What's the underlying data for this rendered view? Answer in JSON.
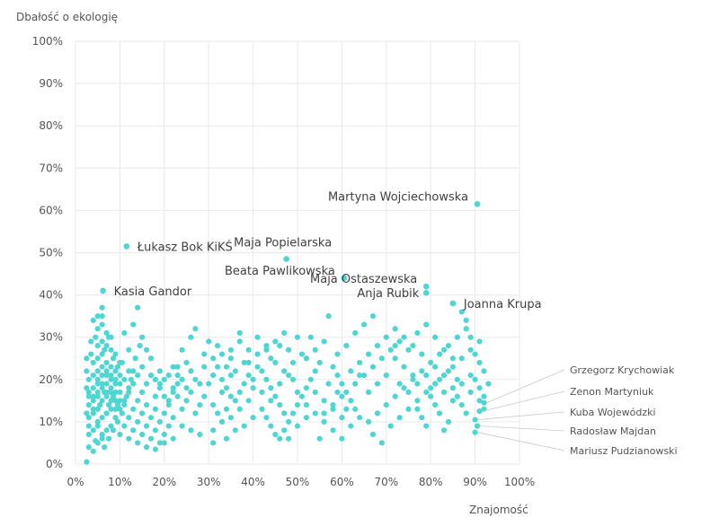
{
  "chart_data": {
    "type": "scatter",
    "title": "",
    "xlabel": "Znajomość",
    "ylabel": "Dbałość o ekologię",
    "xlim": [
      0,
      100
    ],
    "ylim": [
      0,
      100
    ],
    "xticks": [
      "0%",
      "10%",
      "20%",
      "30%",
      "40%",
      "50%",
      "60%",
      "70%",
      "80%",
      "90%",
      "100%"
    ],
    "yticks": [
      "0%",
      "10%",
      "20%",
      "30%",
      "40%",
      "50%",
      "60%",
      "70%",
      "80%",
      "90%",
      "100%"
    ],
    "grid": true,
    "color": "#4fd5d2",
    "labeled_points": [
      {
        "name": "Martyna Wojciechowska",
        "x": 90.5,
        "y": 61.5,
        "label_side": "left-above"
      },
      {
        "name": "Łukasz Bok KiKŚ",
        "x": 11.5,
        "y": 51.5,
        "label_side": "right"
      },
      {
        "name": "Maja Popielarska",
        "x": 47.5,
        "y": 48.5,
        "label_side": "right-above"
      },
      {
        "name": "Beata Pawlikowska",
        "x": 60.5,
        "y": 44.0,
        "label_side": "left-above"
      },
      {
        "name": "Maja Ostaszewska",
        "x": 79.0,
        "y": 42.0,
        "label_side": "left-above"
      },
      {
        "name": "Anja Rubik",
        "x": 79.0,
        "y": 40.5,
        "label_side": "left"
      },
      {
        "name": "Joanna Krupa",
        "x": 85.0,
        "y": 38.0,
        "label_side": "right"
      },
      {
        "name": "Kasia Gandor",
        "x": 6.2,
        "y": 41.0,
        "label_side": "right"
      }
    ],
    "side_labeled_points": [
      {
        "name": "Grzegorz Krychowiak",
        "x": 92.0,
        "y": 14.5
      },
      {
        "name": "Zenon Martyniuk",
        "x": 91.0,
        "y": 12.5
      },
      {
        "name": "Kuba Wojewódzki",
        "x": 90.0,
        "y": 10.5
      },
      {
        "name": "Radosław Majdan",
        "x": 90.5,
        "y": 9.0
      },
      {
        "name": "Mariusz Pudzianowski",
        "x": 90.0,
        "y": 7.5
      }
    ],
    "points": [
      [
        2.5,
        0.5
      ],
      [
        3,
        4
      ],
      [
        4,
        3
      ],
      [
        5,
        5
      ],
      [
        3,
        7
      ],
      [
        4,
        8
      ],
      [
        5,
        9
      ],
      [
        6,
        7
      ],
      [
        3,
        11
      ],
      [
        4,
        12
      ],
      [
        5,
        13
      ],
      [
        6,
        11
      ],
      [
        7,
        12
      ],
      [
        8,
        13
      ],
      [
        3,
        14
      ],
      [
        4,
        15
      ],
      [
        5,
        16
      ],
      [
        6,
        15
      ],
      [
        7,
        16
      ],
      [
        8,
        17
      ],
      [
        9,
        15
      ],
      [
        3,
        17
      ],
      [
        4,
        18
      ],
      [
        5,
        19
      ],
      [
        6,
        18
      ],
      [
        7,
        19
      ],
      [
        8,
        18
      ],
      [
        9,
        17
      ],
      [
        3,
        20
      ],
      [
        4,
        21
      ],
      [
        5,
        22
      ],
      [
        6,
        21
      ],
      [
        7,
        22
      ],
      [
        8,
        21
      ],
      [
        9,
        20
      ],
      [
        10,
        19
      ],
      [
        4,
        24
      ],
      [
        5,
        25
      ],
      [
        6,
        26
      ],
      [
        7,
        24
      ],
      [
        8,
        23
      ],
      [
        9,
        22
      ],
      [
        10,
        21
      ],
      [
        5,
        28
      ],
      [
        6,
        29
      ],
      [
        7,
        28
      ],
      [
        8,
        27
      ],
      [
        9,
        26
      ],
      [
        10,
        24
      ],
      [
        5,
        32
      ],
      [
        6,
        33
      ],
      [
        7,
        31
      ],
      [
        8,
        30
      ],
      [
        4,
        34
      ],
      [
        5,
        35
      ],
      [
        6,
        35
      ],
      [
        4.5,
        30
      ],
      [
        3.5,
        26
      ],
      [
        2.5,
        22
      ],
      [
        2.5,
        18
      ],
      [
        3,
        9
      ],
      [
        4.5,
        5.5
      ],
      [
        6.5,
        4
      ],
      [
        7.5,
        6
      ],
      [
        8.5,
        8
      ],
      [
        9.5,
        10
      ],
      [
        10.5,
        12
      ],
      [
        11,
        14
      ],
      [
        11.5,
        16
      ],
      [
        12,
        18
      ],
      [
        12.5,
        20
      ],
      [
        13,
        22
      ],
      [
        10,
        7
      ],
      [
        11,
        9
      ],
      [
        12,
        11
      ],
      [
        13,
        13
      ],
      [
        14,
        15
      ],
      [
        12,
        6
      ],
      [
        13,
        8
      ],
      [
        14,
        10
      ],
      [
        15,
        12
      ],
      [
        16,
        14
      ],
      [
        14,
        5
      ],
      [
        15,
        7
      ],
      [
        16,
        9
      ],
      [
        17,
        11
      ],
      [
        18,
        13
      ],
      [
        16,
        4
      ],
      [
        17,
        6
      ],
      [
        18,
        8
      ],
      [
        19,
        10
      ],
      [
        20,
        12
      ],
      [
        18,
        3.5
      ],
      [
        19,
        5
      ],
      [
        20,
        7
      ],
      [
        21,
        9
      ],
      [
        22,
        11
      ],
      [
        15,
        17
      ],
      [
        16,
        19
      ],
      [
        17,
        21
      ],
      [
        18,
        16
      ],
      [
        19,
        18
      ],
      [
        20,
        20
      ],
      [
        21,
        15
      ],
      [
        22,
        17
      ],
      [
        23,
        19
      ],
      [
        24,
        13
      ],
      [
        25,
        15
      ],
      [
        26,
        17
      ],
      [
        27,
        12
      ],
      [
        28,
        14
      ],
      [
        29,
        16
      ],
      [
        13.5,
        25
      ],
      [
        14.5,
        28
      ],
      [
        15,
        30
      ],
      [
        13,
        33
      ],
      [
        12,
        27
      ],
      [
        11,
        31
      ],
      [
        14,
        37
      ],
      [
        10.5,
        24
      ],
      [
        22,
        23
      ],
      [
        24,
        27
      ],
      [
        26,
        30
      ],
      [
        27,
        32
      ],
      [
        23,
        21
      ],
      [
        25,
        24
      ],
      [
        29,
        26
      ],
      [
        30,
        19
      ],
      [
        31,
        21
      ],
      [
        32,
        23
      ],
      [
        33,
        20
      ],
      [
        34,
        18
      ],
      [
        35,
        16
      ],
      [
        31,
        14
      ],
      [
        32,
        12
      ],
      [
        33,
        10
      ],
      [
        34,
        13
      ],
      [
        35,
        11
      ],
      [
        36,
        15
      ],
      [
        37,
        17
      ],
      [
        38,
        19
      ],
      [
        39,
        21
      ],
      [
        40,
        18
      ],
      [
        31,
        8
      ],
      [
        31,
        5
      ],
      [
        34,
        6
      ],
      [
        36,
        8
      ],
      [
        38,
        9
      ],
      [
        40,
        11
      ],
      [
        33,
        26
      ],
      [
        35,
        27
      ],
      [
        37,
        31
      ],
      [
        39,
        24
      ],
      [
        41,
        26
      ],
      [
        42,
        22
      ],
      [
        43,
        20
      ],
      [
        44,
        18
      ],
      [
        45,
        16
      ],
      [
        46,
        14
      ],
      [
        47,
        12
      ],
      [
        48,
        10
      ],
      [
        42,
        13
      ],
      [
        43,
        11
      ],
      [
        44,
        9
      ],
      [
        45,
        7
      ],
      [
        46,
        6
      ],
      [
        47,
        8
      ],
      [
        48,
        6
      ],
      [
        49,
        12
      ],
      [
        50,
        14
      ],
      [
        51,
        16
      ],
      [
        52,
        18
      ],
      [
        53,
        20
      ],
      [
        54,
        22
      ],
      [
        55,
        24
      ],
      [
        44,
        25
      ],
      [
        46,
        28
      ],
      [
        48,
        27
      ],
      [
        50,
        30
      ],
      [
        52,
        25
      ],
      [
        54,
        27
      ],
      [
        56,
        29
      ],
      [
        57,
        35
      ],
      [
        58,
        23
      ],
      [
        59,
        21
      ],
      [
        60,
        19
      ],
      [
        61,
        17
      ],
      [
        62,
        15
      ],
      [
        63,
        13
      ],
      [
        64,
        11
      ],
      [
        55,
        6
      ],
      [
        60,
        6
      ],
      [
        56,
        12
      ],
      [
        58,
        14
      ],
      [
        60,
        16
      ],
      [
        62,
        22
      ],
      [
        64,
        24
      ],
      [
        66,
        26
      ],
      [
        68,
        28
      ],
      [
        70,
        30
      ],
      [
        72,
        32
      ],
      [
        63,
        31
      ],
      [
        65,
        33
      ],
      [
        67,
        35
      ],
      [
        61,
        28
      ],
      [
        59,
        26
      ],
      [
        66,
        10
      ],
      [
        68,
        12
      ],
      [
        70,
        14
      ],
      [
        72,
        16
      ],
      [
        74,
        18
      ],
      [
        76,
        20
      ],
      [
        78,
        22
      ],
      [
        80,
        24
      ],
      [
        82,
        26
      ],
      [
        84,
        28
      ],
      [
        86,
        30
      ],
      [
        88,
        32
      ],
      [
        69,
        5
      ],
      [
        67,
        7
      ],
      [
        71,
        9
      ],
      [
        73,
        11
      ],
      [
        75,
        13
      ],
      [
        77,
        15
      ],
      [
        79,
        17
      ],
      [
        81,
        19
      ],
      [
        83,
        21
      ],
      [
        85,
        23
      ],
      [
        87,
        25
      ],
      [
        89,
        27
      ],
      [
        91,
        29
      ],
      [
        73,
        29
      ],
      [
        75,
        27
      ],
      [
        77,
        31
      ],
      [
        79,
        33
      ],
      [
        81,
        30
      ],
      [
        83,
        27
      ],
      [
        85,
        25
      ],
      [
        87,
        36
      ],
      [
        88,
        34
      ],
      [
        89,
        30
      ],
      [
        90,
        20
      ],
      [
        91,
        18
      ],
      [
        92,
        16
      ],
      [
        93,
        19
      ],
      [
        92,
        22
      ],
      [
        91,
        24
      ],
      [
        90,
        26
      ],
      [
        88,
        12
      ],
      [
        87,
        14
      ],
      [
        86,
        16
      ],
      [
        85,
        18
      ],
      [
        84,
        10
      ],
      [
        83,
        8
      ],
      [
        82,
        12
      ],
      [
        81,
        14
      ],
      [
        80,
        16
      ],
      [
        79,
        9
      ],
      [
        78,
        11
      ],
      [
        77,
        13
      ],
      [
        76,
        21
      ],
      [
        74,
        23
      ],
      [
        72,
        25
      ],
      [
        70,
        21
      ],
      [
        68,
        19
      ],
      [
        66,
        17
      ],
      [
        64,
        21
      ],
      [
        62,
        9
      ],
      [
        60,
        11
      ],
      [
        58,
        13
      ],
      [
        56,
        15
      ],
      [
        54,
        17
      ],
      [
        52,
        11
      ],
      [
        50,
        9
      ],
      [
        49,
        20
      ],
      [
        47,
        22
      ],
      [
        45,
        24
      ],
      [
        43,
        28
      ],
      [
        41,
        30
      ],
      [
        39,
        15
      ],
      [
        37,
        13
      ],
      [
        35,
        21
      ],
      [
        33,
        17
      ],
      [
        31,
        25
      ],
      [
        29,
        23
      ],
      [
        27,
        20
      ],
      [
        25,
        18
      ],
      [
        23,
        16
      ],
      [
        21,
        14
      ],
      [
        19,
        22
      ],
      [
        17,
        25
      ],
      [
        16,
        27
      ],
      [
        15,
        23
      ],
      [
        14,
        21
      ],
      [
        13,
        19
      ],
      [
        12,
        17
      ],
      [
        11,
        15
      ],
      [
        10,
        13
      ],
      [
        9,
        11
      ],
      [
        8,
        9
      ],
      [
        7,
        8
      ],
      [
        6,
        6
      ],
      [
        5,
        10
      ],
      [
        4,
        13
      ],
      [
        3,
        16
      ],
      [
        2.5,
        12
      ],
      [
        2.5,
        25
      ],
      [
        3.5,
        29
      ],
      [
        6.5,
        27
      ],
      [
        7.5,
        30
      ],
      [
        8.5,
        25
      ],
      [
        9.5,
        23
      ],
      [
        10,
        17
      ],
      [
        11,
        20
      ],
      [
        12,
        22
      ],
      [
        6,
        37
      ],
      [
        5.5,
        14
      ],
      [
        6.5,
        17
      ],
      [
        7.5,
        14
      ],
      [
        8.5,
        16
      ],
      [
        9.5,
        14
      ],
      [
        5,
        20
      ],
      [
        6,
        23
      ],
      [
        7,
        21
      ],
      [
        8,
        20
      ],
      [
        9,
        19
      ],
      [
        4,
        16
      ],
      [
        5,
        17
      ],
      [
        6,
        19
      ],
      [
        7,
        17
      ],
      [
        8,
        15
      ],
      [
        9,
        13
      ],
      [
        10,
        15
      ],
      [
        24,
        9
      ],
      [
        26,
        8
      ],
      [
        28,
        7
      ],
      [
        22,
        6
      ],
      [
        20,
        5
      ],
      [
        19,
        19
      ],
      [
        21,
        21
      ],
      [
        23,
        23
      ],
      [
        36,
        22
      ],
      [
        38,
        24
      ],
      [
        40,
        20
      ],
      [
        42,
        17
      ],
      [
        44,
        15
      ],
      [
        46,
        19
      ],
      [
        48,
        21
      ],
      [
        50,
        17
      ],
      [
        52,
        14
      ],
      [
        54,
        12
      ],
      [
        56,
        10
      ],
      [
        58,
        8
      ],
      [
        57,
        19
      ],
      [
        59,
        17
      ],
      [
        61,
        13
      ],
      [
        63,
        19
      ],
      [
        65,
        21
      ],
      [
        67,
        23
      ],
      [
        69,
        25
      ],
      [
        71,
        27
      ],
      [
        73,
        19
      ],
      [
        75,
        17
      ],
      [
        77,
        19
      ],
      [
        79,
        21
      ],
      [
        81,
        23
      ],
      [
        83,
        17
      ],
      [
        85,
        15
      ],
      [
        87,
        19
      ],
      [
        89,
        21
      ],
      [
        91,
        15
      ],
      [
        92,
        13
      ],
      [
        89,
        17
      ],
      [
        86,
        20
      ],
      [
        84,
        22
      ],
      [
        82,
        20
      ],
      [
        80,
        18
      ],
      [
        78,
        26
      ],
      [
        76,
        28
      ],
      [
        74,
        30
      ],
      [
        72,
        28
      ],
      [
        53,
        30
      ],
      [
        51,
        26
      ],
      [
        49,
        24
      ],
      [
        47,
        31
      ],
      [
        45,
        29
      ],
      [
        43,
        27
      ],
      [
        41,
        23
      ],
      [
        39,
        27
      ],
      [
        37,
        29
      ],
      [
        35,
        25
      ],
      [
        34,
        23
      ],
      [
        32,
        28
      ],
      [
        30,
        29
      ],
      [
        28,
        19
      ],
      [
        26,
        22
      ],
      [
        24,
        20
      ],
      [
        22,
        18
      ],
      [
        20,
        16
      ],
      [
        18,
        20
      ]
    ]
  }
}
